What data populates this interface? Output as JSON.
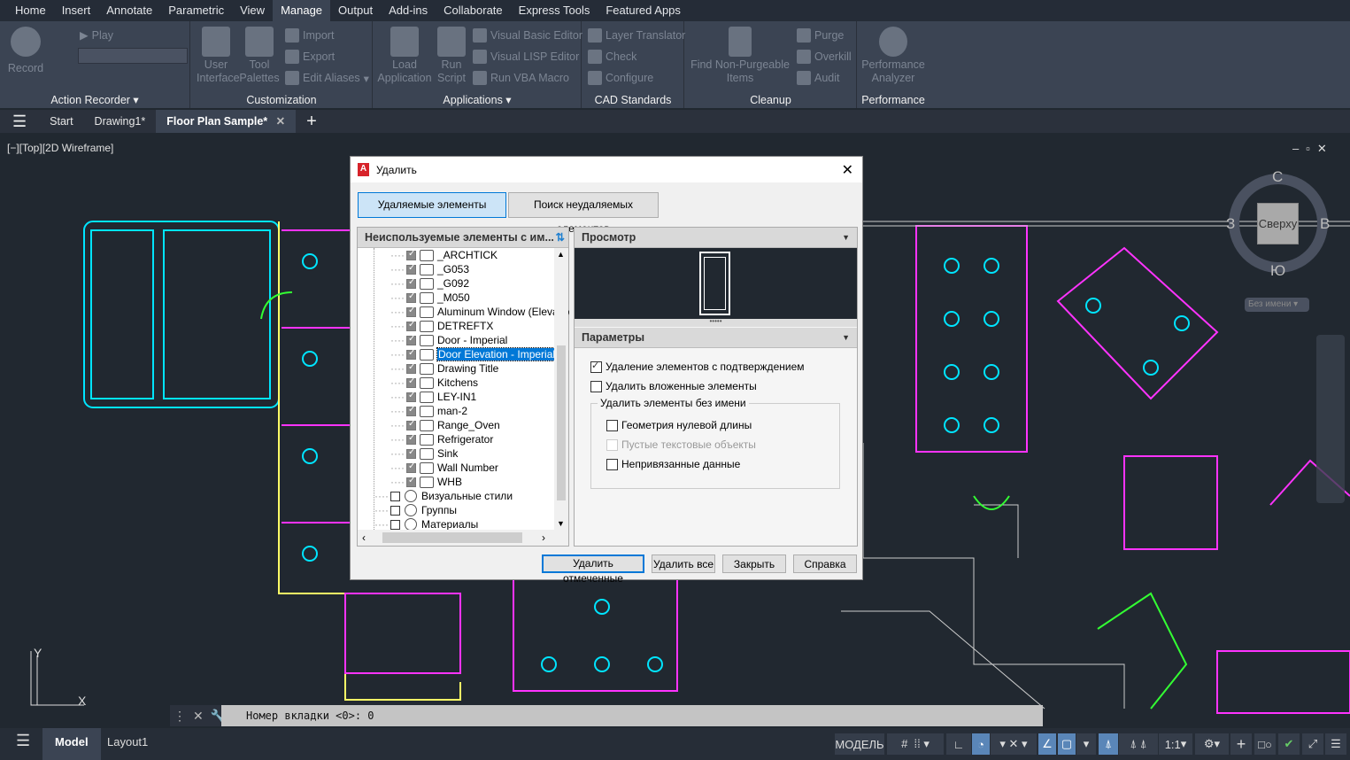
{
  "menu_tabs": [
    "Home",
    "Insert",
    "Annotate",
    "Parametric",
    "View",
    "Manage",
    "Output",
    "Add-ins",
    "Collaborate",
    "Express Tools",
    "Featured Apps"
  ],
  "active_menu_tab": "Manage",
  "ribbon": {
    "action_recorder": {
      "title": "Action Recorder",
      "record": "Record",
      "play": "Play"
    },
    "customization": {
      "title": "Customization",
      "user_interface": "User Interface",
      "tool_palettes": "Tool Palettes",
      "import": "Import",
      "export": "Export",
      "edit_aliases": "Edit Aliases"
    },
    "applications": {
      "title": "Applications",
      "load_application": "Load Application",
      "run_script": "Run Script",
      "vb_editor": "Visual Basic Editor",
      "lisp_editor": "Visual LISP Editor",
      "run_vba": "Run VBA Macro"
    },
    "cad_standards": {
      "title": "CAD Standards",
      "layer_translator": "Layer Translator",
      "check": "Check",
      "configure": "Configure"
    },
    "cleanup": {
      "title": "Cleanup",
      "find_nonpurgeable": "Find Non-Purgeable Items",
      "purge": "Purge",
      "overkill": "Overkill",
      "audit": "Audit"
    },
    "performance": {
      "title": "Performance",
      "analyzer": "Performance Analyzer"
    }
  },
  "file_tabs": [
    "Start",
    "Drawing1*",
    "Floor Plan Sample*"
  ],
  "active_file_tab": "Floor Plan Sample*",
  "viewport_label": "[−][Top][2D Wireframe]",
  "viewcube": {
    "top": "Сверху",
    "north": "С",
    "south": "Ю",
    "east": "В",
    "west": "З",
    "ucs": "Без имени"
  },
  "dialog": {
    "title": "Удалить",
    "tab_purgeable": "Удаляемые элементы",
    "tab_nonpurgeable": "Поиск неудаляемых элементов",
    "list_header": "Неиспользуемые элементы с им...",
    "tree_items": [
      {
        "label": "_ARCHTICK",
        "checked": true
      },
      {
        "label": "_G053",
        "checked": true
      },
      {
        "label": "_G092",
        "checked": true
      },
      {
        "label": "_M050",
        "checked": true
      },
      {
        "label": "Aluminum Window (Elevation)",
        "checked": true
      },
      {
        "label": "DETREFTX",
        "checked": true
      },
      {
        "label": "Door - Imperial",
        "checked": true
      },
      {
        "label": "Door Elevation - Imperial",
        "checked": true,
        "selected": true
      },
      {
        "label": "Drawing Title",
        "checked": true
      },
      {
        "label": "Kitchens",
        "checked": true
      },
      {
        "label": "LEY-IN1",
        "checked": true
      },
      {
        "label": "man-2",
        "checked": true
      },
      {
        "label": "Range_Oven",
        "checked": true
      },
      {
        "label": "Refrigerator",
        "checked": true
      },
      {
        "label": "Sink",
        "checked": true
      },
      {
        "label": "Wall Number",
        "checked": true
      },
      {
        "label": "WHB",
        "checked": true
      }
    ],
    "tree_categories": [
      {
        "label": "Визуальные стили",
        "checked": false
      },
      {
        "label": "Группы",
        "checked": false
      },
      {
        "label": "Материалы",
        "checked": false
      }
    ],
    "preview_header": "Просмотр",
    "params_header": "Параметры",
    "opt_confirm": {
      "label": "Удаление элементов с подтверждением",
      "checked": true
    },
    "opt_nested": {
      "label": "Удалить вложенные элементы",
      "checked": false
    },
    "unnamed_group": "Удалить элементы без имени",
    "opt_zero_geom": {
      "label": "Геометрия нулевой длины",
      "checked": false
    },
    "opt_empty_text": {
      "label": "Пустые текстовые объекты",
      "checked": false,
      "disabled": true
    },
    "opt_orphan": {
      "label": "Непривязанные данные",
      "checked": false
    },
    "btn_purge_checked": "Удалить отмеченные",
    "btn_purge_all": "Удалить все",
    "btn_close": "Закрыть",
    "btn_help": "Справка"
  },
  "command_line": "Номер вкладки <0>: 0",
  "layout_tabs": [
    "Model",
    "Layout1"
  ],
  "active_layout_tab": "Model",
  "status": {
    "model": "МОДЕЛЬ",
    "scale": "1:1"
  },
  "colors": {
    "accent": "#5a86b8",
    "background": "#212830",
    "ribbon": "#3b4453"
  }
}
